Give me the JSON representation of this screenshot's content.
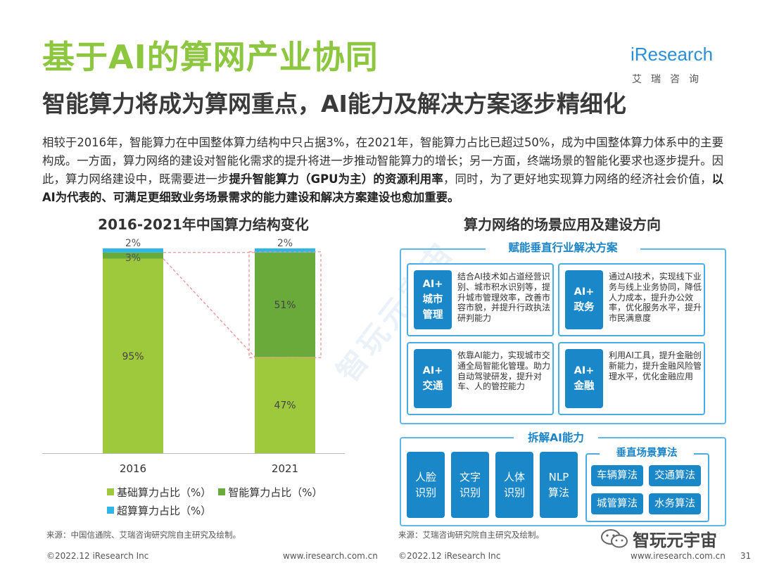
{
  "header": {
    "title": "基于AI的算网产业协同",
    "subtitle": "智能算力将成为算网重点，AI能力及解决方案逐步精细化",
    "logo": "iResearch",
    "logo_sub": "艾瑞咨询"
  },
  "intro": {
    "p1": "相较于2016年，智能算力在中国整体算力结构中只占据3%，在2021年，智能算力占比已超过50%，成为中国整体算力体系中的主要构成。一方面，算力网络的建设对智能化需求的提升将进一步推动智能算力的增长；另一方面，终端场景的智能化要求也逐步提升。因此，算力网络建设中，既需要进一步",
    "b1": "提升智能算力（GPU为主）的资源利用率",
    "p2": "，同时，为了更好地实现算力网络的经济社会价值，",
    "b2": "以AI为代表的、可满足更细致业务场景需求的能力建设和解决方案建设也愈加重要。"
  },
  "chart_data": {
    "type": "bar",
    "stacked": true,
    "title": "2016-2021年中国算力结构变化",
    "categories": [
      "2016",
      "2021"
    ],
    "series": [
      {
        "name": "基础算力占比（%）",
        "values": [
          95,
          47
        ],
        "color": "#9ec93c"
      },
      {
        "name": "智能算力占比（%）",
        "values": [
          3,
          51
        ],
        "color": "#6aaa3a"
      },
      {
        "name": "超算算力占比（%）",
        "values": [
          2,
          2
        ],
        "color": "#2fb6e8"
      }
    ],
    "value_labels": [
      [
        "95%",
        "47%"
      ],
      [
        "3%",
        "51%"
      ],
      [
        "2%",
        "2%"
      ]
    ],
    "ylim": [
      0,
      100
    ],
    "xlabel": "",
    "ylabel": "",
    "legend_position": "bottom"
  },
  "chart_source": "来源：中国信通院、艾瑞咨询研究院自主研究及绘制。",
  "right_panel": {
    "title": "算力网络的场景应用及建设方向",
    "section1": "赋能垂直行业解决方案",
    "cards": [
      {
        "badge": [
          "AI+",
          "城市",
          "管理"
        ],
        "text": "结合AI技术如占道经营识别、城市积水识别等，提升城市管理效率，改善市容市貌，并提升行政执法研判能力"
      },
      {
        "badge": [
          "AI+",
          "政务"
        ],
        "text": "通过AI技术，实现线下业务与线上业务协同，降低人力成本，提升办公效率，优化服务水平，提升市民满意度"
      },
      {
        "badge": [
          "AI+",
          "交通"
        ],
        "text": "依靠AI能力，实现城市交通全局智能化管理。助力自动驾驶研发，提升对车、人的管控能力"
      },
      {
        "badge": [
          "AI+",
          "金融"
        ],
        "text": "利用AI工具，提升金融创新能力，提升金融风险管理水平，优化金融应用"
      }
    ],
    "section2": "拆解AI能力",
    "capabilities": [
      {
        "line1": "人脸",
        "line2": "识别"
      },
      {
        "line1": "文字",
        "line2": "识别"
      },
      {
        "line1": "人体",
        "line2": "识别"
      },
      {
        "line1": "NLP",
        "line2": "算法"
      }
    ],
    "algo_title": "垂直场景算法",
    "algos": [
      "车辆算法",
      "交通算法",
      "城管算法",
      "水务算法"
    ],
    "source": "来源：艾瑞咨询研究院自主研究及绘制。"
  },
  "footer": {
    "copyright_left": "©2022.12 iResearch Inc",
    "site_left": "www.iresearch.com.cn",
    "copyright_right": "©2022.12 iResearch Inc",
    "site_right": "www.iresearch.com.cn",
    "page": "31"
  },
  "watermark": {
    "text": "智玩元宇宙",
    "diag": "智玩元宇宙"
  }
}
